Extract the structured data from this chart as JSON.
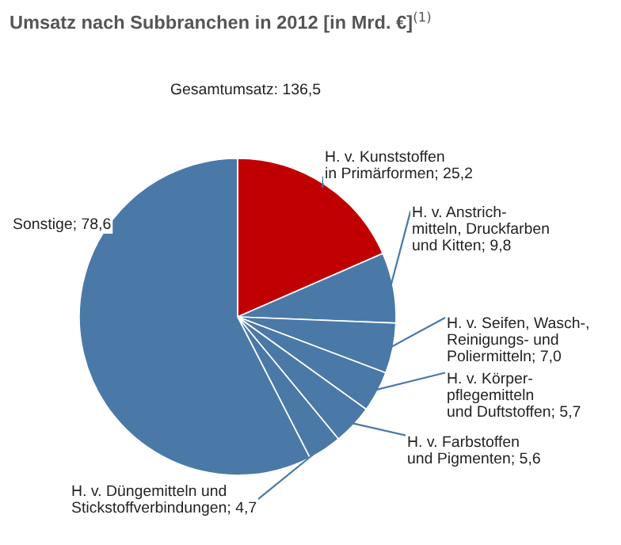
{
  "chart_data": {
    "type": "pie",
    "title": "Umsatz nach Subbranchen in 2012 [in Mrd. €]$^{(1)}$",
    "annotations": [
      "Gesamtumsatz: 136,5"
    ],
    "categories": [
      "H. v. Kunststoffen\nin Primärformen",
      "H. v. Anstrich-\nmitteln, Druckfarben\nund Kitten",
      "H. v. Seifen, Wasch-,\nReinigungs- und\nPoliermitteln",
      "H. v. Körper-\npflegemitteln\nund Duftstoffen",
      "H. v. Farbstoffen\nund Pigmenten",
      "H. v. Düngemitteln und\nStickstoffverbindungen",
      "Sonstige"
    ],
    "values": [
      25.2,
      9.8,
      7.0,
      5.7,
      5.6,
      4.7,
      78.6
    ],
    "value_labels": [
      "25,2",
      "9,8",
      "7,0",
      "5,7",
      "5,6",
      "4,7",
      "78,6"
    ],
    "colors": [
      "#c00000",
      "#4a79a8",
      "#4a79a8",
      "#4a79a8",
      "#4a79a8",
      "#4a79a8",
      "#4a79a8"
    ]
  }
}
